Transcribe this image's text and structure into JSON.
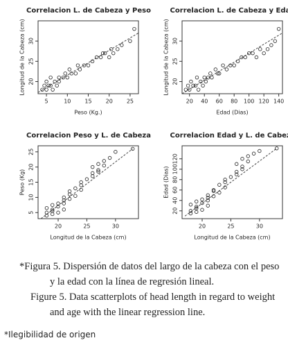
{
  "chart_data": [
    {
      "type": "scatter",
      "title": "Correlacion L. de Cabeza y Peso",
      "x_label": "Peso (Kg.)",
      "y_label": "Longitud de la Cabeza (cm)",
      "x": [
        4,
        4.5,
        5,
        5,
        5.5,
        6,
        6,
        6.5,
        7,
        7.5,
        8,
        8,
        9,
        9.5,
        10,
        10.5,
        11,
        12,
        12.5,
        13,
        14,
        15,
        16,
        17,
        18,
        18.5,
        19,
        20,
        20.5,
        21,
        22,
        23,
        25,
        26
      ],
      "values": [
        18,
        19,
        18,
        20,
        19,
        19,
        21,
        18,
        20,
        19,
        21,
        20,
        21,
        22,
        21,
        23,
        22,
        22,
        24,
        23,
        24,
        24,
        25,
        26,
        26,
        27,
        27,
        26,
        28,
        27,
        28,
        29,
        30,
        33
      ],
      "regression": {
        "x": [
          3,
          27
        ],
        "y": [
          17.3,
          32
        ]
      },
      "xlim": [
        3,
        27
      ],
      "ylim": [
        17,
        35
      ],
      "xticks": [
        5,
        10,
        15,
        20,
        25
      ],
      "yticks": [
        20,
        25,
        30
      ]
    },
    {
      "type": "scatter",
      "title": "Correlacion L. de Cabeza y Edad",
      "x_label": "Edad (Dias)",
      "y_label": "Longitud de la Cabeza (cm)",
      "x": [
        15,
        18,
        20,
        22,
        25,
        28,
        30,
        32,
        35,
        38,
        40,
        42,
        45,
        48,
        50,
        55,
        58,
        60,
        65,
        70,
        75,
        80,
        85,
        90,
        95,
        100,
        105,
        110,
        115,
        120,
        125,
        130,
        135,
        140
      ],
      "values": [
        18,
        19,
        18,
        20,
        19,
        19,
        21,
        18,
        20,
        19,
        21,
        20,
        21,
        22,
        21,
        23,
        22,
        22,
        24,
        23,
        24,
        24,
        25,
        26,
        26,
        27,
        27,
        26,
        28,
        27,
        28,
        29,
        30,
        33
      ],
      "regression": {
        "x": [
          10,
          145
        ],
        "y": [
          17,
          32
        ]
      },
      "xlim": [
        10,
        145
      ],
      "ylim": [
        17,
        35
      ],
      "xticks": [
        20,
        40,
        60,
        80,
        100,
        120,
        140
      ],
      "yticks": [
        20,
        25,
        30
      ]
    },
    {
      "type": "scatter",
      "title": "Correlacion Peso y  L. de Cabeza",
      "x_label": "Longitud de la Cabeza (cm)",
      "y_label": "Peso (Kg)",
      "x": [
        18,
        19,
        18,
        20,
        19,
        19,
        21,
        18,
        20,
        19,
        21,
        20,
        21,
        22,
        21,
        23,
        22,
        22,
        24,
        23,
        24,
        24,
        25,
        26,
        26,
        27,
        27,
        26,
        28,
        27,
        28,
        29,
        30,
        33
      ],
      "values": [
        4,
        4.5,
        5,
        5,
        5.5,
        6,
        6,
        6.5,
        7,
        7.5,
        8,
        8,
        9,
        9.5,
        10,
        10.5,
        11,
        12,
        12.5,
        13,
        14,
        15,
        16,
        17,
        18,
        18.5,
        19,
        20,
        20.5,
        21,
        22,
        23,
        25,
        26
      ],
      "regression": {
        "x": [
          17,
          33
        ],
        "y": [
          3,
          26
        ]
      },
      "xlim": [
        16.5,
        34
      ],
      "ylim": [
        3,
        27
      ],
      "xticks": [
        20,
        25,
        30
      ],
      "yticks": [
        5,
        10,
        15,
        20,
        25
      ]
    },
    {
      "type": "scatter",
      "title": "Correlacion Edad y  L. de Cabeza",
      "x_label": "Longitud de la Cabeza (cm)",
      "y_label": "Edad (Dias)",
      "x": [
        18,
        19,
        18,
        20,
        19,
        19,
        21,
        18,
        20,
        19,
        21,
        20,
        21,
        22,
        21,
        23,
        22,
        22,
        24,
        23,
        24,
        24,
        25,
        26,
        26,
        27,
        27,
        26,
        28,
        27,
        28,
        29,
        30,
        33
      ],
      "values": [
        15,
        18,
        20,
        22,
        25,
        28,
        30,
        32,
        35,
        38,
        40,
        42,
        45,
        48,
        50,
        55,
        58,
        60,
        65,
        70,
        75,
        80,
        85,
        90,
        95,
        100,
        105,
        110,
        115,
        120,
        125,
        130,
        135,
        140
      ],
      "regression": {
        "x": [
          17,
          33
        ],
        "y": [
          10,
          140
        ]
      },
      "xlim": [
        16.5,
        34
      ],
      "ylim": [
        5,
        145
      ],
      "xticks": [
        20,
        25,
        30
      ],
      "yticks": [
        20,
        40,
        60,
        80,
        100,
        120
      ]
    }
  ],
  "caption": [
    "*Figura 5. Dispersión de datos del largo de la cabeza con el peso",
    "y la edad con la línea de regresión lineal.",
    "Figure 5. Data scatterplots of head length in regard to weight",
    "and age with the linear regression line."
  ],
  "note": "*Ilegibilidad de origen"
}
